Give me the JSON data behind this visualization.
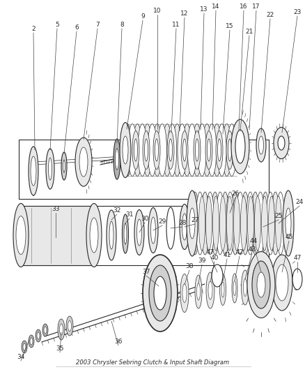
{
  "title": "2003 Chrysler Sebring Clutch & Input Shaft Diagram",
  "bg": "#ffffff",
  "lc": "#2a2a2a",
  "fc_light": "#e8e8e8",
  "fc_mid": "#d0d0d0",
  "fc_dark": "#b0b0b0",
  "label_fs": 6.5,
  "fig_w": 4.39,
  "fig_h": 5.33,
  "dpi": 100
}
